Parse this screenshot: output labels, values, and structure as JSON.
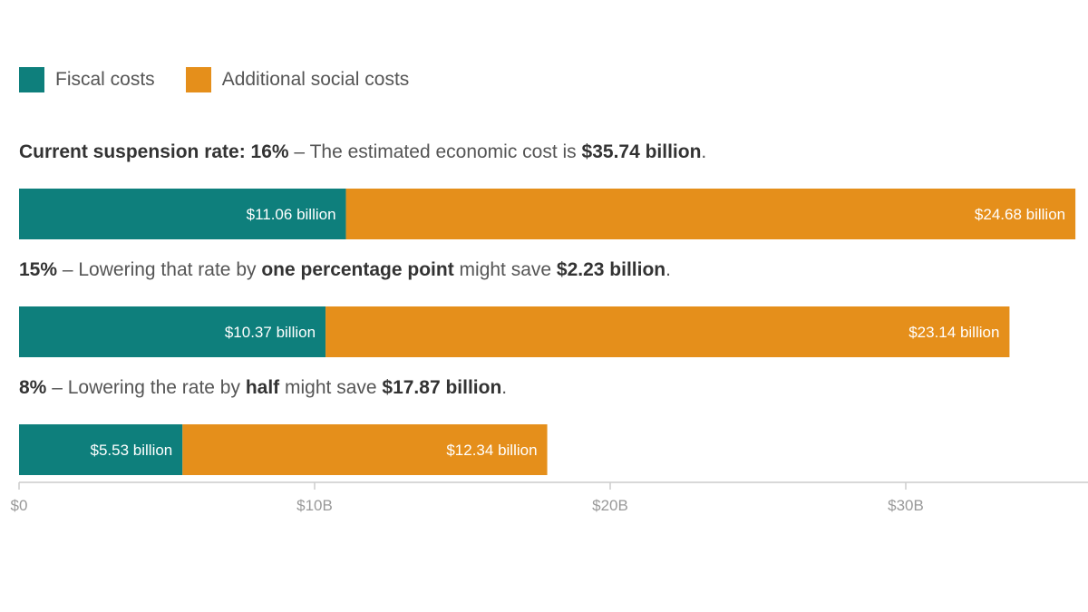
{
  "colors": {
    "fiscal": "#0e7f7c",
    "social": "#e58f1b",
    "axis": "#cccccc",
    "tick_text": "#999999"
  },
  "legend": [
    {
      "label": "Fiscal costs",
      "color": "#0e7f7c"
    },
    {
      "label": "Additional social costs",
      "color": "#e58f1b"
    }
  ],
  "captions": [
    {
      "parts": [
        {
          "text": "Current suspension rate: 16%",
          "bold": true
        },
        {
          "text": " – The estimated economic cost is ",
          "bold": false
        },
        {
          "text": "$35.74 billion",
          "bold": true
        },
        {
          "text": ".",
          "bold": false
        }
      ]
    },
    {
      "parts": [
        {
          "text": "15%",
          "bold": true
        },
        {
          "text": " – Lowering that rate by ",
          "bold": false
        },
        {
          "text": "one percentage point",
          "bold": true
        },
        {
          "text": " might save ",
          "bold": false
        },
        {
          "text": "$2.23 billion",
          "bold": true
        },
        {
          "text": ".",
          "bold": false
        }
      ]
    },
    {
      "parts": [
        {
          "text": "8%",
          "bold": true
        },
        {
          "text": " – Lowering the rate by ",
          "bold": false
        },
        {
          "text": "half",
          "bold": true
        },
        {
          "text": " might save ",
          "bold": false
        },
        {
          "text": "$17.87 billion",
          "bold": true
        },
        {
          "text": ".",
          "bold": false
        }
      ]
    }
  ],
  "chart_data": {
    "type": "bar",
    "orientation": "horizontal",
    "stacked": true,
    "categories": [
      "16%",
      "15%",
      "8%"
    ],
    "series": [
      {
        "name": "Fiscal costs",
        "values": [
          11.06,
          10.37,
          5.53
        ],
        "labels": [
          "$11.06 billion",
          "$10.37 billion",
          "$5.53 billion"
        ]
      },
      {
        "name": "Additional social costs",
        "values": [
          24.68,
          23.14,
          12.34
        ],
        "labels": [
          "$24.68 billion",
          "$23.14 billion",
          "$12.34 billion"
        ]
      }
    ],
    "xlim": [
      0,
      36
    ],
    "xticks": [
      0,
      10,
      20,
      30
    ],
    "xtick_labels": [
      "$0",
      "$10B",
      "$20B",
      "$30B"
    ],
    "legend_position": "top-left",
    "grid": false
  }
}
